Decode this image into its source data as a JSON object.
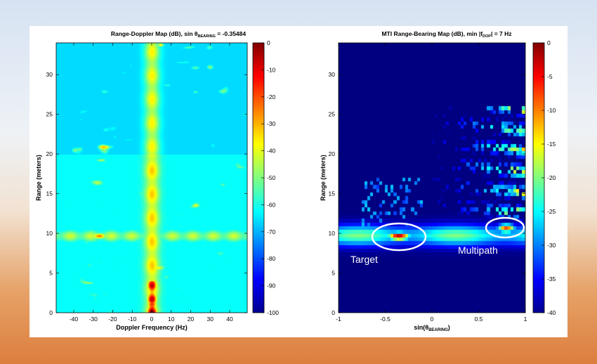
{
  "chart_data": [
    {
      "type": "heatmap",
      "title_prefix": "Range-Doppler Map (dB), sin θ",
      "title_subscript": "BEARING",
      "title_suffix": " =  -0.35484",
      "xlabel": "Doppler Frequency (Hz)",
      "ylabel": "Range (meters)",
      "xlim": [
        -49,
        49
      ],
      "ylim": [
        0,
        34
      ],
      "xticks": [
        -40,
        -30,
        -20,
        -10,
        0,
        10,
        20,
        30,
        40
      ],
      "yticks": [
        0,
        5,
        10,
        15,
        20,
        25,
        30
      ],
      "colorbar": {
        "min": -100,
        "max": 0,
        "ticks": [
          0,
          -10,
          -20,
          -30,
          -40,
          -50,
          -60,
          -70,
          -80,
          -90,
          -100
        ]
      },
      "features": [
        {
          "kind": "vertical-ridge",
          "x": 0,
          "level_db": -40,
          "note": "zero-Doppler clutter line"
        },
        {
          "kind": "horizontal-ridge",
          "y": 9.7,
          "level_db": -45
        },
        {
          "kind": "peak",
          "x": -27,
          "y": 9.7,
          "level_db": -25
        },
        {
          "kind": "peak",
          "x": 0,
          "y": 0.5,
          "level_db": -5
        }
      ]
    },
    {
      "type": "heatmap",
      "title_prefix": "MTI Range-Bearing Map (dB), min |f",
      "title_subscript": "DOP",
      "title_suffix": "| = 7 Hz",
      "xlabel_prefix": "sin(θ",
      "xlabel_subscript": "BEARING",
      "xlabel_suffix": ")",
      "ylabel": "Range (meters)",
      "xlim": [
        -1,
        1
      ],
      "ylim": [
        0,
        34
      ],
      "xticks": [
        -1,
        -0.5,
        0,
        0.5,
        1
      ],
      "yticks": [
        0,
        5,
        10,
        15,
        20,
        25,
        30
      ],
      "colorbar": {
        "min": -40,
        "max": 0,
        "ticks": [
          0,
          -5,
          -10,
          -15,
          -20,
          -25,
          -30,
          -35,
          -40
        ]
      },
      "features": [
        {
          "kind": "horizontal-ridge",
          "y": 9.7,
          "level_db": -25
        },
        {
          "kind": "peak",
          "x": -0.35,
          "y": 9.6,
          "level_db": -2
        },
        {
          "kind": "peak",
          "x": 0.8,
          "y": 10.6,
          "level_db": -8
        }
      ],
      "annotations": [
        "Target",
        "Multipath"
      ]
    }
  ]
}
